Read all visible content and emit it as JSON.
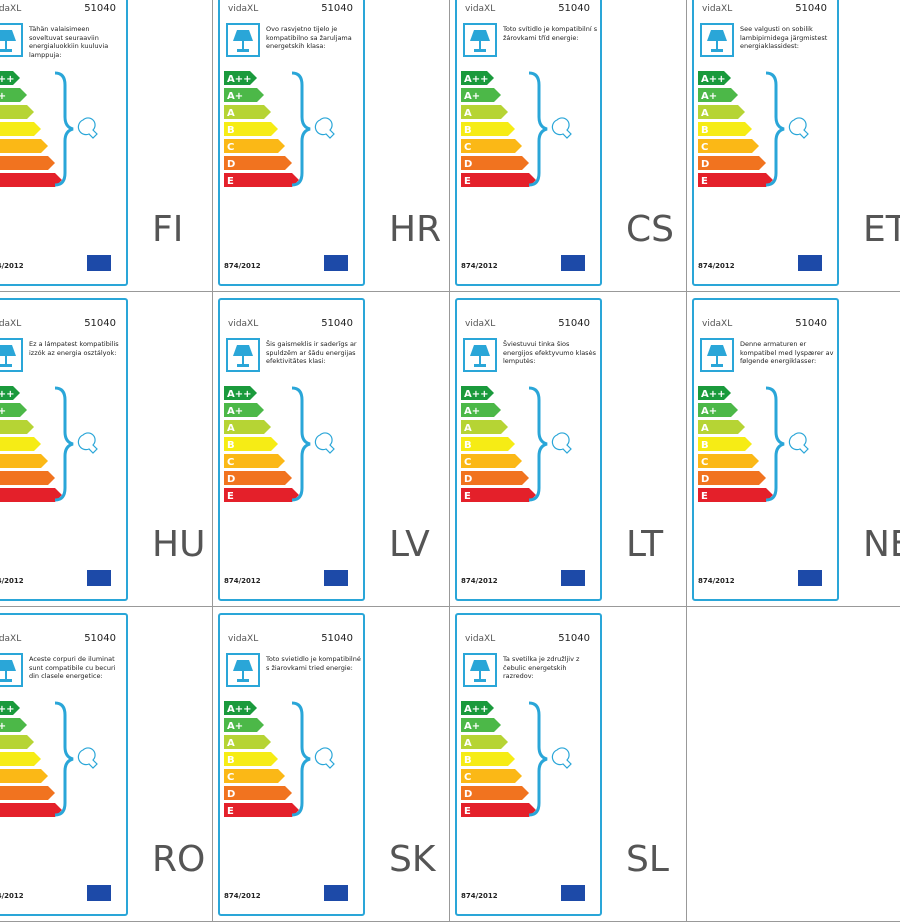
{
  "brand": "vidaXL",
  "model": "51040",
  "regulation": "874/2012",
  "classes": [
    "A++",
    "A+",
    "A",
    "B",
    "C",
    "D",
    "E"
  ],
  "cells": [
    {
      "code": "FI",
      "text": "Tähän valaisimeen soveltuvat seuraaviin energialuokkiin kuuluvia lamppuja:"
    },
    {
      "code": "HR",
      "text": "Ovo rasvjetno tijelo je kompatibilno sa žaruljama energetskih klasa:"
    },
    {
      "code": "CS",
      "text": "Toto svítidlo je kompatibilní s žárovkami tříd energie:"
    },
    {
      "code": "ET",
      "text": "See valgusti on sobilik lambipirnidega järgmistest energiaklassidest:"
    },
    {
      "code": "HU",
      "text": "Ez a lámpatest kompatibilis izzók az energia osztályok:"
    },
    {
      "code": "LV",
      "text": "Šis gaismeklis ir saderīgs ar spuldzēm ar šādu energijas efektivitātes klasi:"
    },
    {
      "code": "LT",
      "text": "Šviestuvui tinka šios energijos efektyvumo klasės lemputės:"
    },
    {
      "code": "NE",
      "text": "Denne armaturen er kompatibel med lyspærer av følgende energiklasser:"
    },
    {
      "code": "RO",
      "text": "Aceste corpuri de iluminat sunt compatibile cu becuri din clasele energetice:"
    },
    {
      "code": "SK",
      "text": "Toto svietidlo je kompatibilné s žiarovkami tried energie:"
    },
    {
      "code": "SL",
      "text": "Ta svetilka je združljiv z čebulic energetskih razredov:"
    }
  ]
}
